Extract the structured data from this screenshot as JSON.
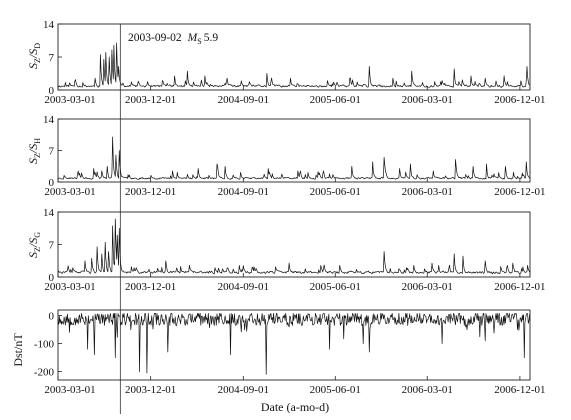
{
  "figure": {
    "event_annotation": {
      "date": "2003-09-02",
      "magnitude_symbol": "M",
      "magnitude_subscript": "S",
      "magnitude_value": "5.9",
      "date_value": "2003-09-02"
    },
    "xlabel": "Date (a-mo-d)"
  },
  "chart_data": [
    {
      "type": "line",
      "panel": 1,
      "ylabel": {
        "base": "S",
        "sub1": "Z",
        "sep": "/S",
        "sub2": "D"
      },
      "ylim": [
        0,
        14
      ],
      "yticks": [
        0,
        7,
        14
      ],
      "x_range": [
        "2003-03-01",
        "2006-12-31"
      ],
      "xticks": [
        "2003-03-01",
        "2003-12-01",
        "2004-09-01",
        "2005-06-01",
        "2006-03-01",
        "2006-12-01"
      ],
      "baseline": 0.8,
      "noise": 0.7,
      "seed": 11,
      "spikes": [
        [
          "2003-06-20",
          2.5
        ],
        [
          "2003-07-05",
          7.5
        ],
        [
          "2003-07-15",
          6.5
        ],
        [
          "2003-07-22",
          8.0
        ],
        [
          "2003-08-01",
          7.0
        ],
        [
          "2003-08-08",
          8.5
        ],
        [
          "2003-08-15",
          9.5
        ],
        [
          "2003-08-22",
          10.0
        ],
        [
          "2003-08-28",
          5.0
        ],
        [
          "2004-01-05",
          2.0
        ],
        [
          "2004-02-10",
          3.0
        ],
        [
          "2004-03-20",
          4.0
        ],
        [
          "2004-05-10",
          3.0
        ],
        [
          "2004-07-15",
          2.5
        ],
        [
          "2004-11-10",
          3.5
        ],
        [
          "2005-01-20",
          2.5
        ],
        [
          "2005-05-10",
          2.0
        ],
        [
          "2005-07-15",
          2.5
        ],
        [
          "2005-09-10",
          5.0
        ],
        [
          "2005-11-20",
          2.5
        ],
        [
          "2006-01-15",
          4.0
        ],
        [
          "2006-04-15",
          2.0
        ],
        [
          "2006-05-20",
          4.5
        ],
        [
          "2006-07-10",
          3.0
        ],
        [
          "2006-08-20",
          2.5
        ],
        [
          "2006-10-15",
          3.0
        ],
        [
          "2006-12-22",
          5.0
        ]
      ]
    },
    {
      "type": "line",
      "panel": 2,
      "ylabel": {
        "base": "S",
        "sub1": "Z",
        "sep": "/S",
        "sub2": "H"
      },
      "ylim": [
        0,
        14
      ],
      "yticks": [
        0,
        7,
        14
      ],
      "x_range": [
        "2003-03-01",
        "2006-12-31"
      ],
      "xticks": [
        "2003-03-01",
        "2003-12-01",
        "2004-09-01",
        "2005-06-01",
        "2006-03-01",
        "2006-12-01"
      ],
      "baseline": 0.9,
      "noise": 0.6,
      "seed": 23,
      "spikes": [
        [
          "2003-05-10",
          2.0
        ],
        [
          "2003-06-15",
          3.0
        ],
        [
          "2003-07-10",
          2.5
        ],
        [
          "2003-07-25",
          3.5
        ],
        [
          "2003-08-10",
          10.0
        ],
        [
          "2003-08-20",
          6.0
        ],
        [
          "2003-08-30",
          7.0
        ],
        [
          "2004-02-05",
          2.5
        ],
        [
          "2004-04-20",
          3.0
        ],
        [
          "2004-06-15",
          4.0
        ],
        [
          "2004-07-10",
          3.5
        ],
        [
          "2004-11-15",
          3.0
        ],
        [
          "2005-02-10",
          2.5
        ],
        [
          "2005-04-15",
          2.0
        ],
        [
          "2005-07-20",
          3.5
        ],
        [
          "2005-09-20",
          4.5
        ],
        [
          "2005-10-25",
          5.5
        ],
        [
          "2005-12-10",
          3.0
        ],
        [
          "2006-01-10",
          4.0
        ],
        [
          "2006-03-20",
          2.5
        ],
        [
          "2006-05-25",
          5.0
        ],
        [
          "2006-07-15",
          3.5
        ],
        [
          "2006-08-25",
          4.0
        ],
        [
          "2006-10-20",
          3.5
        ],
        [
          "2006-12-20",
          4.5
        ]
      ]
    },
    {
      "type": "line",
      "panel": 3,
      "ylabel": {
        "base": "S",
        "sub1": "Z",
        "sep": "/S",
        "sub2": "G"
      },
      "ylim": [
        0,
        14
      ],
      "yticks": [
        0,
        7,
        14
      ],
      "x_range": [
        "2003-03-01",
        "2006-12-31"
      ],
      "xticks": [
        "2003-03-01",
        "2003-12-01",
        "2004-09-01",
        "2005-06-01",
        "2006-03-01",
        "2006-12-01"
      ],
      "baseline": 1.0,
      "noise": 0.8,
      "seed": 37,
      "spikes": [
        [
          "2003-04-15",
          2.0
        ],
        [
          "2003-05-20",
          3.5
        ],
        [
          "2003-06-10",
          4.0
        ],
        [
          "2003-06-25",
          6.5
        ],
        [
          "2003-07-10",
          5.0
        ],
        [
          "2003-07-20",
          7.5
        ],
        [
          "2003-07-30",
          5.5
        ],
        [
          "2003-08-10",
          11.0
        ],
        [
          "2003-08-18",
          12.5
        ],
        [
          "2003-08-25",
          9.0
        ],
        [
          "2003-08-30",
          10.5
        ],
        [
          "2003-10-20",
          2.0
        ],
        [
          "2004-01-15",
          3.5
        ],
        [
          "2004-03-25",
          2.5
        ],
        [
          "2004-06-10",
          2.0
        ],
        [
          "2004-08-20",
          2.5
        ],
        [
          "2005-01-15",
          3.0
        ],
        [
          "2005-04-20",
          2.5
        ],
        [
          "2005-06-15",
          2.5
        ],
        [
          "2005-10-25",
          5.5
        ],
        [
          "2006-01-20",
          2.5
        ],
        [
          "2006-03-15",
          3.0
        ],
        [
          "2006-05-20",
          5.0
        ],
        [
          "2006-06-15",
          4.5
        ],
        [
          "2006-08-20",
          3.5
        ],
        [
          "2006-11-10",
          3.0
        ],
        [
          "2006-12-25",
          2.5
        ]
      ]
    },
    {
      "type": "line",
      "panel": 4,
      "ylabel": "Dst/nT",
      "ylim": [
        -230,
        20
      ],
      "yticks": [
        0,
        -100,
        -200
      ],
      "x_range": [
        "2003-03-01",
        "2006-12-31"
      ],
      "xticks": [
        "2003-03-01",
        "2003-12-01",
        "2004-09-01",
        "2005-06-01",
        "2006-03-01",
        "2006-12-01"
      ],
      "baseline": -12,
      "noise": 24,
      "seed": 53,
      "spikes": [
        [
          "2003-05-29",
          -120
        ],
        [
          "2003-06-18",
          -140
        ],
        [
          "2003-08-18",
          -150
        ],
        [
          "2003-10-30",
          -200
        ],
        [
          "2003-11-20",
          -205
        ],
        [
          "2004-01-22",
          -130
        ],
        [
          "2004-07-25",
          -140
        ],
        [
          "2004-11-08",
          -210
        ],
        [
          "2005-05-15",
          -120
        ],
        [
          "2005-08-24",
          -100
        ],
        [
          "2005-09-11",
          -130
        ],
        [
          "2006-04-14",
          -100
        ],
        [
          "2006-08-20",
          -90
        ],
        [
          "2006-12-15",
          -150
        ]
      ]
    }
  ]
}
